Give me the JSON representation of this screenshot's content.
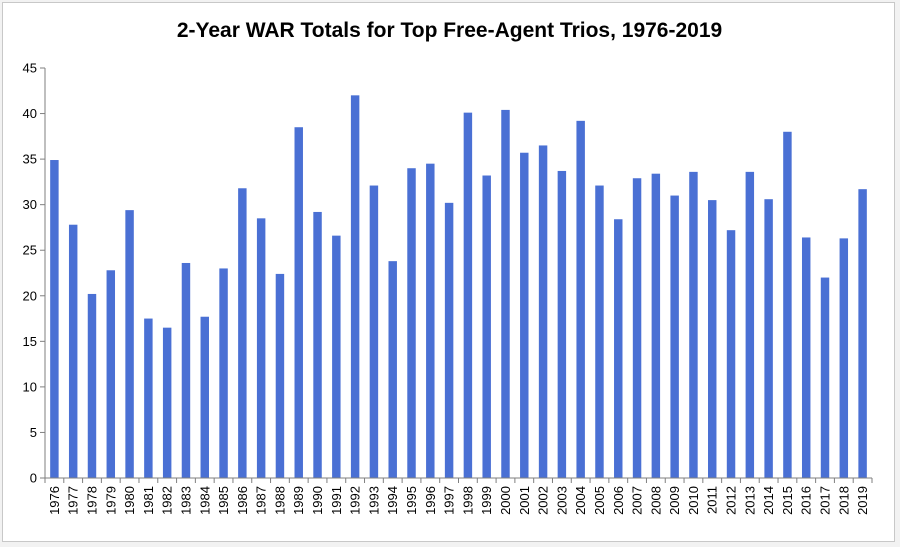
{
  "colors": {
    "bar": "#4a70d4",
    "axis": "#7f7f7f",
    "background": "#ffffff"
  },
  "chart_data": {
    "type": "bar",
    "title": "2-Year WAR Totals for Top Free-Agent  Trios, 1976-2019",
    "xlabel": "",
    "ylabel": "",
    "ylim": [
      0,
      45
    ],
    "yticks": [
      "0",
      "5",
      "10",
      "15",
      "20",
      "25",
      "30",
      "35",
      "40",
      "45"
    ],
    "grid": false,
    "legend": "none",
    "categories": [
      "1976",
      "1977",
      "1978",
      "1979",
      "1980",
      "1981",
      "1982",
      "1983",
      "1984",
      "1985",
      "1986",
      "1987",
      "1988",
      "1989",
      "1990",
      "1991",
      "1992",
      "1993",
      "1994",
      "1995",
      "1996",
      "1997",
      "1998",
      "1999",
      "2000",
      "2001",
      "2002",
      "2003",
      "2004",
      "2005",
      "2006",
      "2007",
      "2008",
      "2009",
      "2010",
      "2011",
      "2012",
      "2013",
      "2014",
      "2015",
      "2016",
      "2017",
      "2018",
      "2019"
    ],
    "values": [
      34.9,
      27.8,
      20.2,
      22.8,
      29.4,
      17.5,
      16.5,
      23.6,
      17.7,
      23.0,
      31.8,
      28.5,
      22.4,
      38.5,
      29.2,
      26.6,
      42.0,
      32.1,
      23.8,
      34.0,
      34.5,
      30.2,
      40.1,
      33.2,
      40.4,
      35.7,
      36.5,
      33.7,
      39.2,
      32.1,
      28.4,
      32.9,
      33.4,
      31.0,
      33.6,
      30.5,
      27.2,
      33.6,
      30.6,
      38.0,
      26.4,
      22.0,
      26.3,
      31.7
    ]
  }
}
